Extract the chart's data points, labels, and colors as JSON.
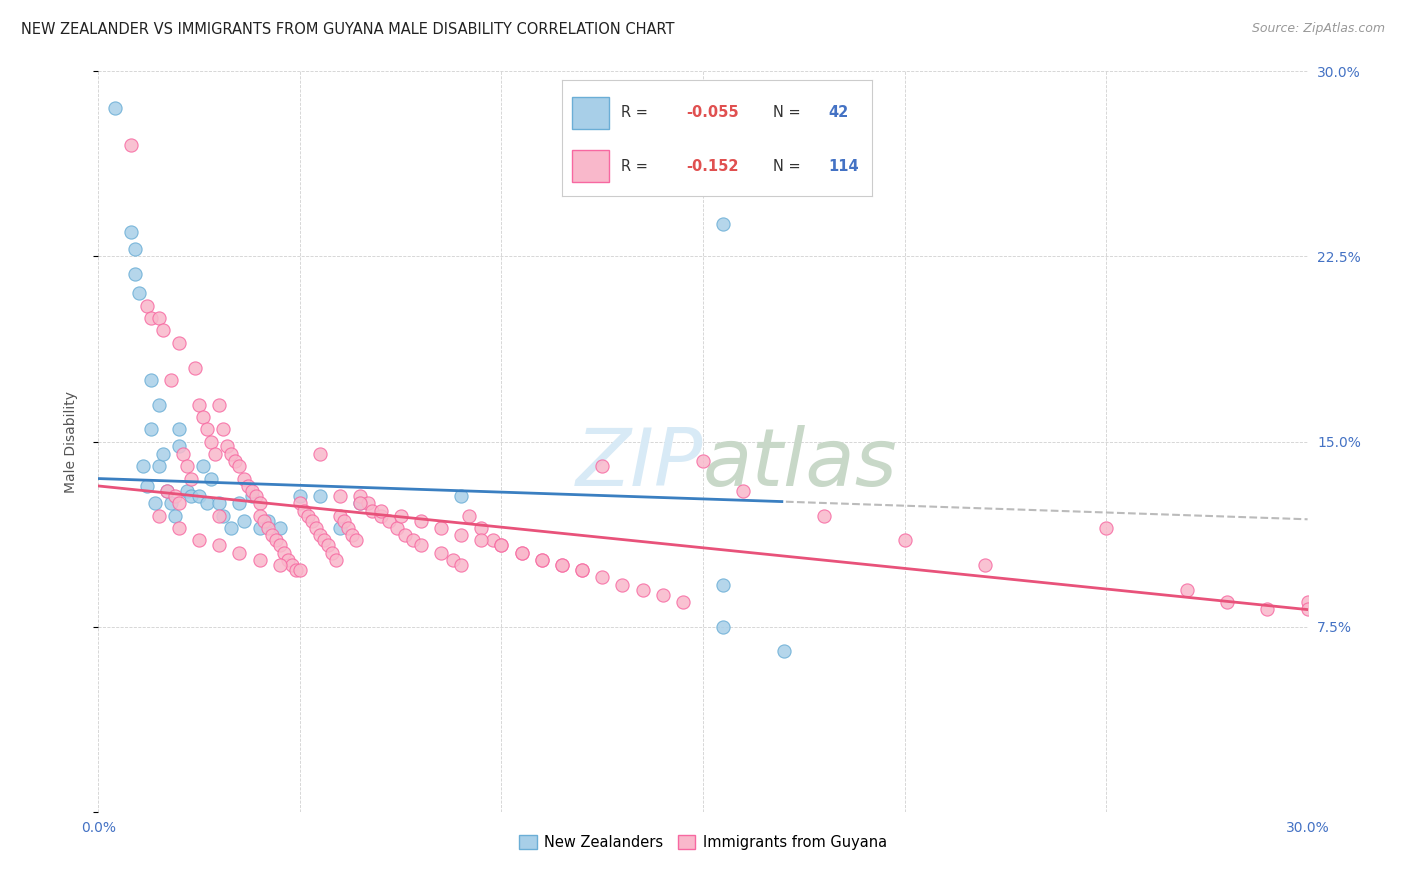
{
  "title": "NEW ZEALANDER VS IMMIGRANTS FROM GUYANA MALE DISABILITY CORRELATION CHART",
  "source": "Source: ZipAtlas.com",
  "ylabel": "Male Disability",
  "xlim": [
    0.0,
    0.3
  ],
  "ylim": [
    0.0,
    0.3
  ],
  "x_ticks": [
    0.0,
    0.05,
    0.1,
    0.15,
    0.2,
    0.25,
    0.3
  ],
  "y_ticks": [
    0.0,
    0.075,
    0.15,
    0.225,
    0.3
  ],
  "blue_scatter_color": "#a8cfe8",
  "blue_edge_color": "#6baed6",
  "pink_scatter_color": "#f9b8cb",
  "pink_edge_color": "#f768a1",
  "blue_line_color": "#3a7fc1",
  "pink_line_color": "#e8527a",
  "dash_line_color": "#bbbbbb",
  "watermark_color": "#d8eaf6",
  "nz_x": [
    0.004,
    0.008,
    0.009,
    0.009,
    0.01,
    0.011,
    0.012,
    0.013,
    0.013,
    0.014,
    0.015,
    0.015,
    0.016,
    0.017,
    0.018,
    0.019,
    0.02,
    0.02,
    0.022,
    0.023,
    0.025,
    0.026,
    0.027,
    0.028,
    0.03,
    0.031,
    0.033,
    0.035,
    0.036,
    0.038,
    0.04,
    0.042,
    0.045,
    0.05,
    0.055,
    0.06,
    0.065,
    0.09,
    0.155,
    0.155,
    0.17,
    0.155
  ],
  "nz_y": [
    0.285,
    0.235,
    0.228,
    0.218,
    0.21,
    0.14,
    0.132,
    0.175,
    0.155,
    0.125,
    0.165,
    0.14,
    0.145,
    0.13,
    0.125,
    0.12,
    0.155,
    0.148,
    0.13,
    0.128,
    0.128,
    0.14,
    0.125,
    0.135,
    0.125,
    0.12,
    0.115,
    0.125,
    0.118,
    0.128,
    0.115,
    0.118,
    0.115,
    0.128,
    0.128,
    0.115,
    0.125,
    0.128,
    0.092,
    0.075,
    0.065,
    0.238
  ],
  "gy_x": [
    0.008,
    0.012,
    0.013,
    0.015,
    0.016,
    0.017,
    0.018,
    0.019,
    0.02,
    0.02,
    0.021,
    0.022,
    0.023,
    0.024,
    0.025,
    0.026,
    0.027,
    0.028,
    0.029,
    0.03,
    0.03,
    0.031,
    0.032,
    0.033,
    0.034,
    0.035,
    0.036,
    0.037,
    0.038,
    0.039,
    0.04,
    0.04,
    0.041,
    0.042,
    0.043,
    0.044,
    0.045,
    0.046,
    0.047,
    0.048,
    0.049,
    0.05,
    0.051,
    0.052,
    0.053,
    0.054,
    0.055,
    0.056,
    0.057,
    0.058,
    0.059,
    0.06,
    0.061,
    0.062,
    0.063,
    0.064,
    0.065,
    0.067,
    0.068,
    0.07,
    0.072,
    0.074,
    0.076,
    0.078,
    0.08,
    0.085,
    0.088,
    0.09,
    0.092,
    0.095,
    0.098,
    0.1,
    0.105,
    0.11,
    0.115,
    0.12,
    0.125,
    0.13,
    0.135,
    0.14,
    0.145,
    0.015,
    0.02,
    0.025,
    0.03,
    0.035,
    0.04,
    0.045,
    0.05,
    0.055,
    0.06,
    0.065,
    0.07,
    0.075,
    0.08,
    0.085,
    0.09,
    0.095,
    0.1,
    0.105,
    0.11,
    0.115,
    0.12,
    0.125,
    0.15,
    0.16,
    0.18,
    0.2,
    0.22,
    0.25,
    0.27,
    0.28,
    0.29,
    0.3,
    0.3
  ],
  "gy_y": [
    0.27,
    0.205,
    0.2,
    0.2,
    0.195,
    0.13,
    0.175,
    0.128,
    0.19,
    0.125,
    0.145,
    0.14,
    0.135,
    0.18,
    0.165,
    0.16,
    0.155,
    0.15,
    0.145,
    0.165,
    0.12,
    0.155,
    0.148,
    0.145,
    0.142,
    0.14,
    0.135,
    0.132,
    0.13,
    0.128,
    0.125,
    0.12,
    0.118,
    0.115,
    0.112,
    0.11,
    0.108,
    0.105,
    0.102,
    0.1,
    0.098,
    0.125,
    0.122,
    0.12,
    0.118,
    0.115,
    0.112,
    0.11,
    0.108,
    0.105,
    0.102,
    0.12,
    0.118,
    0.115,
    0.112,
    0.11,
    0.128,
    0.125,
    0.122,
    0.12,
    0.118,
    0.115,
    0.112,
    0.11,
    0.108,
    0.105,
    0.102,
    0.1,
    0.12,
    0.115,
    0.11,
    0.108,
    0.105,
    0.102,
    0.1,
    0.098,
    0.095,
    0.092,
    0.09,
    0.088,
    0.085,
    0.12,
    0.115,
    0.11,
    0.108,
    0.105,
    0.102,
    0.1,
    0.098,
    0.145,
    0.128,
    0.125,
    0.122,
    0.12,
    0.118,
    0.115,
    0.112,
    0.11,
    0.108,
    0.105,
    0.102,
    0.1,
    0.098,
    0.14,
    0.142,
    0.13,
    0.12,
    0.11,
    0.1,
    0.115,
    0.09,
    0.085,
    0.082,
    0.085,
    0.082
  ]
}
